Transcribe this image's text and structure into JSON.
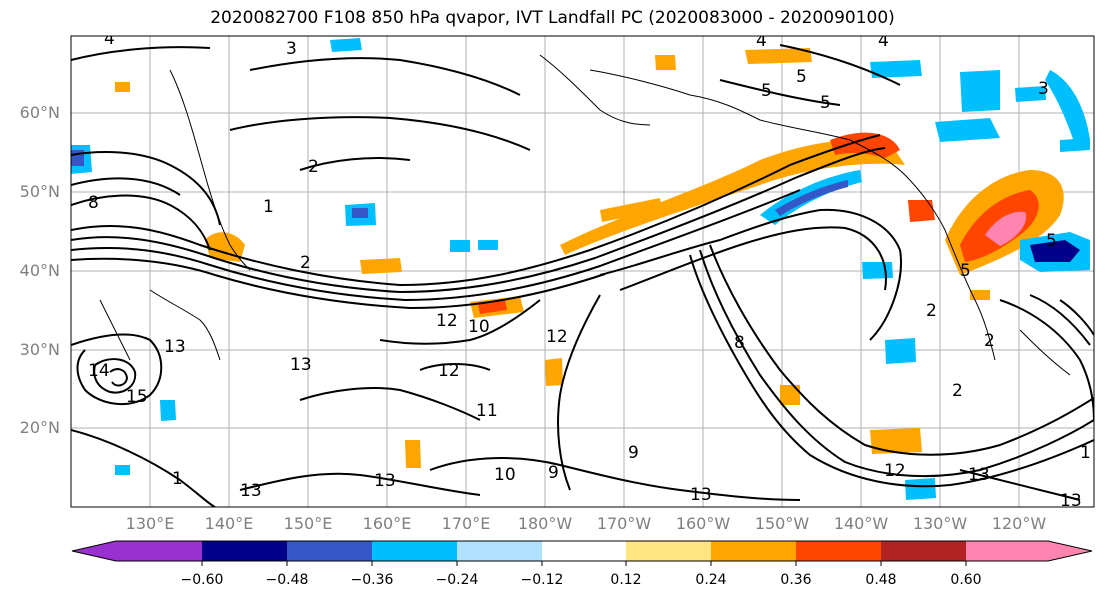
{
  "title": "2020082700 F108 850 hPa qvapor, IVT Landfall PC (2020083000 - 2020090100)",
  "map": {
    "lat_labels": [
      "60°N",
      "50°N",
      "40°N",
      "30°N",
      "20°N"
    ],
    "lon_labels": [
      "130°E",
      "140°E",
      "150°E",
      "160°E",
      "170°E",
      "180°W",
      "170°W",
      "160°W",
      "150°W",
      "140°W",
      "130°W",
      "120°W"
    ],
    "contour_labels": [
      "4",
      "3",
      "4",
      "4",
      "5",
      "5",
      "5",
      "2",
      "1",
      "3",
      "8",
      "2",
      "13",
      "14",
      "15",
      "13",
      "12",
      "10",
      "12",
      "12",
      "11",
      "10",
      "9",
      "9",
      "8",
      "2",
      "2",
      "1",
      "2",
      "12",
      "13",
      "13",
      "13",
      "13",
      "1",
      "13",
      "5",
      "5"
    ]
  },
  "colorbar": {
    "tick_labels": [
      "−0.60",
      "−0.48",
      "−0.36",
      "−0.24",
      "−0.12",
      "0.12",
      "0.24",
      "0.36",
      "0.48",
      "0.60"
    ],
    "colors": [
      "#9b30d0",
      "#00008b",
      "#3457c8",
      "#00bfff",
      "#b0e2ff",
      "#ffffff",
      "#ffe680",
      "#ffa500",
      "#ff4500",
      "#b22222",
      "#ff85b0"
    ]
  }
}
